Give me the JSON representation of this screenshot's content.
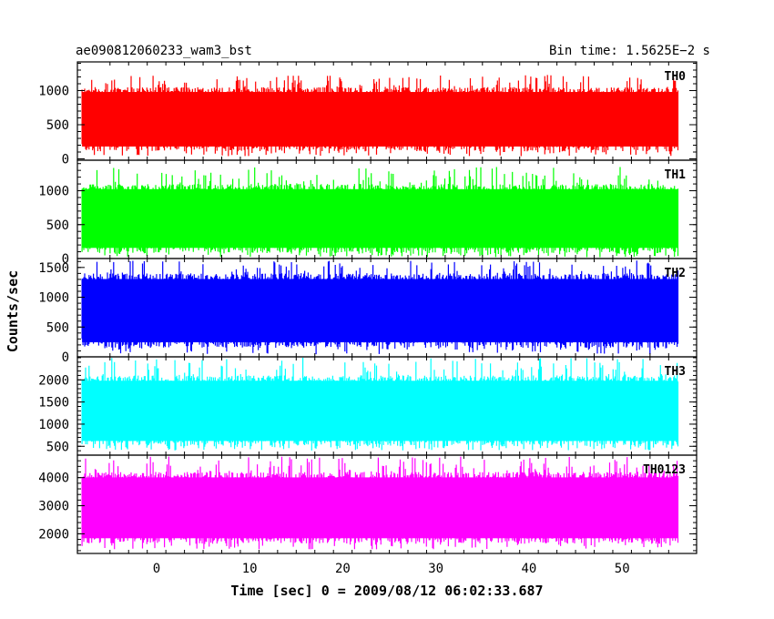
{
  "chart_data": {
    "type": "line",
    "title": "ae090812060233_wam3_bst",
    "subtitle": "Bin time: 1.5625E−2 s",
    "xlabel": "Time [sec] 0 = 2009/08/12 06:02:33.687",
    "ylabel": "Counts/sec",
    "xlim": [
      -8.5,
      58
    ],
    "x_data_range": [
      -8,
      56
    ],
    "x_ticks": [
      0,
      10,
      20,
      30,
      40,
      50
    ],
    "x_tick_labels": [
      "0",
      "10",
      "20",
      "30",
      "40",
      "50"
    ],
    "panels": [
      {
        "name": "TH0",
        "color": "#ff0000",
        "ylim": [
          -20,
          1420
        ],
        "y_ticks": [
          0,
          500,
          1000
        ],
        "y_tick_labels": [
          "0",
          "500",
          "1000"
        ],
        "band": [
          110,
          1050
        ],
        "extreme": [
          40,
          1230
        ]
      },
      {
        "name": "TH1",
        "color": "#00ff00",
        "ylim": [
          0,
          1450
        ],
        "y_ticks": [
          0,
          500,
          1000
        ],
        "y_tick_labels": [
          "0",
          "500",
          "1000"
        ],
        "band": [
          80,
          1100
        ],
        "extreme": [
          20,
          1350
        ]
      },
      {
        "name": "TH2",
        "color": "#0000ff",
        "ylim": [
          0,
          1650
        ],
        "y_ticks": [
          0,
          500,
          1000,
          1500
        ],
        "y_tick_labels": [
          "0",
          "500",
          "1000",
          "1500"
        ],
        "band": [
          150,
          1400
        ],
        "extreme": [
          40,
          1620
        ]
      },
      {
        "name": "TH3",
        "color": "#00ffff",
        "ylim": [
          300,
          2520
        ],
        "y_ticks": [
          500,
          1000,
          1500,
          2000
        ],
        "y_tick_labels": [
          "500",
          "1000",
          "1500",
          "2000"
        ],
        "band": [
          500,
          2100
        ],
        "extreme": [
          400,
          2500
        ]
      },
      {
        "name": "TH0123",
        "color": "#ff00ff",
        "ylim": [
          1300,
          4800
        ],
        "y_ticks": [
          2000,
          3000,
          4000
        ],
        "y_tick_labels": [
          "2000",
          "3000",
          "4000"
        ],
        "band": [
          1650,
          4200
        ],
        "extreme": [
          1450,
          4750
        ]
      }
    ]
  }
}
